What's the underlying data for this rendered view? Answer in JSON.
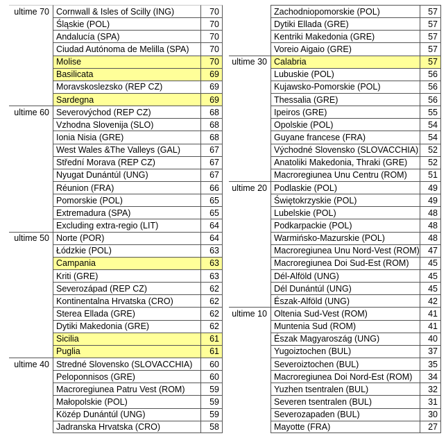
{
  "colors": {
    "background": "#FFFFFF",
    "text": "#000000",
    "grid_border": "#555555",
    "first_row_gridline": "#C9C9C9",
    "highlight_yellow": "#FFFF99"
  },
  "tables": [
    {
      "name": "left",
      "groups": [
        {
          "label": "ultime 70",
          "rows": [
            {
              "region": "Cornwall & Isles of Scilly (ING)",
              "value": 70,
              "highlight": false
            },
            {
              "region": "Śląskie (POL)",
              "value": 70,
              "highlight": false
            },
            {
              "region": "Andalucía (SPA)",
              "value": 70,
              "highlight": false
            },
            {
              "region": "Ciudad Autónoma de Melilla (SPA)",
              "value": 70,
              "highlight": false
            },
            {
              "region": "Molise",
              "value": 70,
              "highlight": true
            },
            {
              "region": "Basilicata",
              "value": 69,
              "highlight": true
            },
            {
              "region": "Moravskoslezsko (REP CZ)",
              "value": 69,
              "highlight": false
            },
            {
              "region": "Sardegna",
              "value": 69,
              "highlight": true
            }
          ]
        },
        {
          "label": "ultime 60",
          "rows": [
            {
              "region": "Severovýchod (REP CZ)",
              "value": 68,
              "highlight": false
            },
            {
              "region": "Vzhodna Slovenija (SLO)",
              "value": 68,
              "highlight": false
            },
            {
              "region": "Ionia Nisia (GRE)",
              "value": 68,
              "highlight": false
            },
            {
              "region": "West Wales &The Valleys (GAL)",
              "value": 67,
              "highlight": false
            },
            {
              "region": "Střední Morava (REP CZ)",
              "value": 67,
              "highlight": false
            },
            {
              "region": "Nyugat Dunántúl (UNG)",
              "value": 67,
              "highlight": false
            },
            {
              "region": "Réunion (FRA)",
              "value": 66,
              "highlight": false
            },
            {
              "region": "Pomorskie (POL)",
              "value": 65,
              "highlight": false
            },
            {
              "region": "Extremadura (SPA)",
              "value": 65,
              "highlight": false
            },
            {
              "region": "Excluding extra-regio (LIT)",
              "value": 64,
              "highlight": false
            }
          ]
        },
        {
          "label": "ultime 50",
          "rows": [
            {
              "region": "Norte (POR)",
              "value": 64,
              "highlight": false
            },
            {
              "region": "Łódzkie (POL)",
              "value": 63,
              "highlight": false
            },
            {
              "region": "Campania",
              "value": 63,
              "highlight": true
            },
            {
              "region": "Kriti (GRE)",
              "value": 63,
              "highlight": false
            },
            {
              "region": "Severozápad (REP CZ)",
              "value": 62,
              "highlight": false
            },
            {
              "region": "Kontinentalna Hrvatska (CRO)",
              "value": 62,
              "highlight": false
            },
            {
              "region": "Sterea Ellada (GRE)",
              "value": 62,
              "highlight": false
            },
            {
              "region": "Dytiki Makedonia (GRE)",
              "value": 62,
              "highlight": false
            },
            {
              "region": "Sicilia",
              "value": 61,
              "highlight": true
            },
            {
              "region": "Puglia",
              "value": 61,
              "highlight": true
            }
          ]
        },
        {
          "label": "ultime 40",
          "rows": [
            {
              "region": "Stredné Slovensko (SLOVACCHIA)",
              "value": 60,
              "highlight": false
            },
            {
              "region": "Peloponnisos (GRE)",
              "value": 60,
              "highlight": false
            },
            {
              "region": "Macroregiunea Patru Vest (ROM)",
              "value": 59,
              "highlight": false
            },
            {
              "region": "Małopolskie (POL)",
              "value": 59,
              "highlight": false
            },
            {
              "region": "Közép Dunántúl (UNG)",
              "value": 59,
              "highlight": false
            },
            {
              "region": "Jadranska Hrvatska (CRO)",
              "value": 58,
              "highlight": false
            }
          ]
        }
      ]
    },
    {
      "name": "right",
      "groups": [
        {
          "label": "",
          "rows": [
            {
              "region": "Zachodniopomorskie (POL)",
              "value": 57,
              "highlight": false
            },
            {
              "region": "Dytiki Ellada (GRE)",
              "value": 57,
              "highlight": false
            },
            {
              "region": "Kentriki Makedonia (GRE)",
              "value": 57,
              "highlight": false
            },
            {
              "region": "Voreio Aigaio (GRE)",
              "value": 57,
              "highlight": false
            }
          ]
        },
        {
          "label": "ultime 30",
          "rows": [
            {
              "region": "Calabria",
              "value": 57,
              "highlight": true
            },
            {
              "region": "Lubuskie (POL)",
              "value": 56,
              "highlight": false
            },
            {
              "region": "Kujawsko-Pomorskie (POL)",
              "value": 56,
              "highlight": false
            },
            {
              "region": "Thessalia (GRE)",
              "value": 56,
              "highlight": false
            },
            {
              "region": "Ipeiros (GRE)",
              "value": 55,
              "highlight": false
            },
            {
              "region": "Opolskie (POL)",
              "value": 54,
              "highlight": false
            },
            {
              "region": "Guyane francese (FRA)",
              "value": 54,
              "highlight": false
            },
            {
              "region": "Východné Slovensko (SLOVACCHIA)",
              "value": 52,
              "highlight": false
            },
            {
              "region": "Anatoliki Makedonia, Thraki (GRE)",
              "value": 52,
              "highlight": false
            },
            {
              "region": "Macroregiunea Unu Centru (ROM)",
              "value": 51,
              "highlight": false
            }
          ]
        },
        {
          "label": "ultime 20",
          "rows": [
            {
              "region": "Podlaskie (POL)",
              "value": 49,
              "highlight": false
            },
            {
              "region": "Świętokrzyskie (POL)",
              "value": 49,
              "highlight": false
            },
            {
              "region": "Lubelskie (POL)",
              "value": 48,
              "highlight": false
            },
            {
              "region": "Podkarpackie (POL)",
              "value": 48,
              "highlight": false
            },
            {
              "region": "Warmińsko-Mazurskie (POL)",
              "value": 48,
              "highlight": false
            },
            {
              "region": "Macroregiunea Unu Nord-Vest (ROM)",
              "value": 47,
              "highlight": false
            },
            {
              "region": "Macroregiunea Doi Sud-Est (ROM)",
              "value": 45,
              "highlight": false
            },
            {
              "region": "Dél-Alföld (UNG)",
              "value": 45,
              "highlight": false
            },
            {
              "region": "Dél Dunántúl (UNG)",
              "value": 45,
              "highlight": false
            },
            {
              "region": "Észak-Alföld (UNG)",
              "value": 42,
              "highlight": false
            }
          ]
        },
        {
          "label": "ultime 10",
          "rows": [
            {
              "region": "Oltenia Sud-Vest (ROM)",
              "value": 41,
              "highlight": false
            },
            {
              "region": "Muntenia Sud (ROM)",
              "value": 41,
              "highlight": false
            },
            {
              "region": "Észak Magyaroszág (UNG)",
              "value": 40,
              "highlight": false
            },
            {
              "region": "Yugoiztochen (BUL)",
              "value": 37,
              "highlight": false
            },
            {
              "region": "Severoiztochen (BUL)",
              "value": 35,
              "highlight": false
            },
            {
              "region": "Macroregiunea Doi Nord-Est (ROM)",
              "value": 34,
              "highlight": false
            },
            {
              "region": "Yuzhen tsentralen (BUL)",
              "value": 32,
              "highlight": false
            },
            {
              "region": "Severen tsentralen (BUL)",
              "value": 31,
              "highlight": false
            },
            {
              "region": "Severozapaden (BUL)",
              "value": 30,
              "highlight": false
            },
            {
              "region": "Mayotte (FRA)",
              "value": 27,
              "highlight": false
            }
          ]
        }
      ]
    }
  ]
}
